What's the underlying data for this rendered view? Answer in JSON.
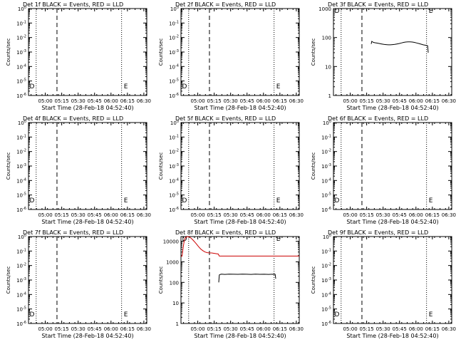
{
  "chart_data": [
    {
      "type": "line",
      "title": "Det 1f BLACK = Events, RED = LLD",
      "xlabel": "Start Time (28-Feb-18 04:52:40)",
      "ylabel": "Counts/sec",
      "x_tick_labels": [
        "05:00",
        "05:15",
        "05:30",
        "05:45",
        "06:00",
        "06:15",
        "06:30"
      ],
      "y_tick_labels": [
        "10^0",
        "10^-1",
        "10^-2",
        "10^-3",
        "10^-4",
        "10^-5",
        "10^-6"
      ],
      "y_tick_values": [
        1,
        0.1,
        0.01,
        0.001,
        0.0001,
        1e-05,
        1e-06
      ],
      "ylim": [
        1,
        1e-06
      ],
      "y_scale": "log",
      "x_minutes_range": [
        -8,
        100
      ],
      "markers": [
        {
          "label": "D",
          "x_minutes": -7
        },
        {
          "label": "E",
          "x_minutes": 79
        }
      ],
      "series": []
    },
    {
      "type": "line",
      "title": "Det 2f BLACK = Events, RED = LLD",
      "xlabel": "Start Time (28-Feb-18 04:52:40)",
      "ylabel": "Counts/sec",
      "x_tick_labels": [
        "05:00",
        "05:15",
        "05:30",
        "05:45",
        "06:00",
        "06:15",
        "06:30"
      ],
      "y_tick_labels": [
        "10^0",
        "10^-1",
        "10^-2",
        "10^-3",
        "10^-4",
        "10^-5",
        "10^-6"
      ],
      "y_tick_values": [
        1,
        0.1,
        0.01,
        0.001,
        0.0001,
        1e-05,
        1e-06
      ],
      "ylim": [
        1,
        1e-06
      ],
      "y_scale": "log",
      "x_minutes_range": [
        -8,
        100
      ],
      "markers": [
        {
          "label": "D",
          "x_minutes": -7
        },
        {
          "label": "E",
          "x_minutes": 79
        }
      ],
      "series": []
    },
    {
      "type": "line",
      "title": "Det 3f BLACK = Events, RED = LLD",
      "xlabel": "Start Time (28-Feb-18 04:52:40)",
      "ylabel": "Counts/sec",
      "x_tick_labels": [
        "05:00",
        "05:15",
        "05:30",
        "05:45",
        "06:00",
        "06:15",
        "06:30"
      ],
      "y_tick_labels": [
        "1000",
        "100",
        "10",
        "1"
      ],
      "y_tick_values": [
        1000,
        100,
        10,
        1
      ],
      "ylim": [
        1,
        1000
      ],
      "y_scale": "log",
      "x_minutes_range": [
        -8,
        100
      ],
      "markers": [
        {
          "label": "D",
          "x_minutes": -7
        },
        {
          "label": "E",
          "x_minutes": 79
        }
      ],
      "series": [
        {
          "color": "#000000",
          "x_minutes": [
            26.5,
            27,
            27.5,
            28,
            28.5,
            30,
            32,
            34,
            36,
            38,
            40,
            42,
            44,
            46,
            48,
            50,
            52,
            54,
            56,
            58,
            60,
            62,
            64,
            66,
            68,
            70,
            72,
            74,
            76,
            78,
            78.5
          ],
          "values": [
            60,
            74,
            72,
            70,
            68,
            66,
            64,
            62,
            60,
            58,
            57,
            56,
            56,
            57,
            58,
            60,
            62,
            65,
            68,
            70,
            71,
            71,
            70,
            68,
            65,
            62,
            59,
            56,
            54,
            52,
            30
          ]
        }
      ]
    },
    {
      "type": "line",
      "title": "Det 4f BLACK = Events, RED = LLD",
      "xlabel": "Start Time (28-Feb-18 04:52:40)",
      "ylabel": "Counts/sec",
      "x_tick_labels": [
        "05:00",
        "05:15",
        "05:30",
        "05:45",
        "06:00",
        "06:15",
        "06:30"
      ],
      "y_tick_labels": [
        "10^0",
        "10^-1",
        "10^-2",
        "10^-3",
        "10^-4",
        "10^-5",
        "10^-6"
      ],
      "y_tick_values": [
        1,
        0.1,
        0.01,
        0.001,
        0.0001,
        1e-05,
        1e-06
      ],
      "ylim": [
        1,
        1e-06
      ],
      "y_scale": "log",
      "x_minutes_range": [
        -8,
        100
      ],
      "markers": [
        {
          "label": "D",
          "x_minutes": -7
        },
        {
          "label": "E",
          "x_minutes": 79
        }
      ],
      "series": []
    },
    {
      "type": "line",
      "title": "Det 5f BLACK = Events, RED = LLD",
      "xlabel": "Start Time (28-Feb-18 04:52:40)",
      "ylabel": "Counts/sec",
      "x_tick_labels": [
        "05:00",
        "05:15",
        "05:30",
        "05:45",
        "06:00",
        "06:15",
        "06:30"
      ],
      "y_tick_labels": [
        "10^0",
        "10^-1",
        "10^-2",
        "10^-3",
        "10^-4",
        "10^-5",
        "10^-6"
      ],
      "y_tick_values": [
        1,
        0.1,
        0.01,
        0.001,
        0.0001,
        1e-05,
        1e-06
      ],
      "ylim": [
        1,
        1e-06
      ],
      "y_scale": "log",
      "x_minutes_range": [
        -8,
        100
      ],
      "markers": [
        {
          "label": "D",
          "x_minutes": -7
        },
        {
          "label": "E",
          "x_minutes": 79
        }
      ],
      "series": []
    },
    {
      "type": "line",
      "title": "Det 6f BLACK = Events, RED = LLD",
      "xlabel": "Start Time (28-Feb-18 04:52:40)",
      "ylabel": "Counts/sec",
      "x_tick_labels": [
        "05:00",
        "05:15",
        "05:30",
        "05:45",
        "06:00",
        "06:15",
        "06:30"
      ],
      "y_tick_labels": [
        "10^0",
        "10^-1",
        "10^-2",
        "10^-3",
        "10^-4",
        "10^-5",
        "10^-6"
      ],
      "y_tick_values": [
        1,
        0.1,
        0.01,
        0.001,
        0.0001,
        1e-05,
        1e-06
      ],
      "ylim": [
        1,
        1e-06
      ],
      "y_scale": "log",
      "x_minutes_range": [
        -8,
        100
      ],
      "markers": [
        {
          "label": "D",
          "x_minutes": -7
        },
        {
          "label": "E",
          "x_minutes": 79
        }
      ],
      "series": []
    },
    {
      "type": "line",
      "title": "Det 7f BLACK = Events, RED = LLD",
      "xlabel": "Start Time (28-Feb-18 04:52:40)",
      "ylabel": "Counts/sec",
      "x_tick_labels": [
        "05:00",
        "05:15",
        "05:30",
        "05:45",
        "06:00",
        "06:15",
        "06:30"
      ],
      "y_tick_labels": [
        "10^0",
        "10^-1",
        "10^-2",
        "10^-3",
        "10^-4",
        "10^-5",
        "10^-6"
      ],
      "y_tick_values": [
        1,
        0.1,
        0.01,
        0.001,
        0.0001,
        1e-05,
        1e-06
      ],
      "ylim": [
        1,
        1e-06
      ],
      "y_scale": "log",
      "x_minutes_range": [
        -8,
        100
      ],
      "markers": [
        {
          "label": "D",
          "x_minutes": -7
        },
        {
          "label": "E",
          "x_minutes": 79
        }
      ],
      "series": []
    },
    {
      "type": "line",
      "title": "Det 8f BLACK = Events, RED = LLD",
      "xlabel": "Start Time (28-Feb-18 04:52:40)",
      "ylabel": "Counts/sec",
      "x_tick_labels": [
        "05:00",
        "05:15",
        "05:30",
        "05:45",
        "06:00",
        "06:15",
        "06:30"
      ],
      "y_tick_labels": [
        "10000",
        "1000",
        "100",
        "10",
        "1"
      ],
      "y_tick_values": [
        10000,
        1000,
        100,
        10,
        1
      ],
      "ylim": [
        1,
        17000
      ],
      "y_scale": "log",
      "x_minutes_range": [
        -8,
        100
      ],
      "markers": [
        {
          "label": "D",
          "x_minutes": -7
        },
        {
          "label": "E",
          "x_minutes": 79
        }
      ],
      "series": [
        {
          "color": "#000000",
          "x_minutes": [
            26.5,
            27,
            28,
            29,
            30,
            32,
            36,
            40,
            44,
            48,
            52,
            56,
            60,
            64,
            68,
            72,
            76,
            78,
            78.5
          ],
          "values": [
            100,
            230,
            245,
            250,
            248,
            245,
            250,
            248,
            246,
            250,
            248,
            245,
            250,
            247,
            249,
            245,
            248,
            246,
            150
          ]
        },
        {
          "color": "#cc0000",
          "x_minutes": [
            -8,
            -7,
            -6,
            -5,
            -4,
            -2,
            0,
            2,
            4,
            6,
            8,
            10,
            12,
            14,
            16,
            18,
            20,
            22,
            24,
            26,
            27,
            30,
            40,
            50,
            60,
            70,
            80,
            90,
            100
          ],
          "values": [
            1800,
            1900,
            5000,
            11000,
            15000,
            17000,
            16000,
            13000,
            10000,
            7500,
            5500,
            4200,
            3500,
            3000,
            2800,
            2700,
            2700,
            2600,
            2500,
            2400,
            1900,
            1900,
            1900,
            1900,
            1900,
            1900,
            1900,
            1900,
            1900
          ]
        }
      ]
    },
    {
      "type": "line",
      "title": "Det 9f BLACK = Events, RED = LLD",
      "xlabel": "Start Time (28-Feb-18 04:52:40)",
      "ylabel": "Counts/sec",
      "x_tick_labels": [
        "05:00",
        "05:15",
        "05:30",
        "05:45",
        "06:00",
        "06:15",
        "06:30"
      ],
      "y_tick_labels": [
        "10^0",
        "10^-1",
        "10^-2",
        "10^-3",
        "10^-4",
        "10^-5",
        "10^-6"
      ],
      "y_tick_values": [
        1,
        0.1,
        0.01,
        0.001,
        0.0001,
        1e-05,
        1e-06
      ],
      "ylim": [
        1,
        1e-06
      ],
      "y_scale": "log",
      "x_minutes_range": [
        -8,
        100
      ],
      "markers": [
        {
          "label": "D",
          "x_minutes": -7
        },
        {
          "label": "E",
          "x_minutes": 79
        }
      ],
      "series": []
    }
  ],
  "shared": {
    "x_tick_minutes": [
      7.33,
      22.33,
      37.33,
      52.33,
      67.33,
      82.33,
      97.33
    ],
    "dotted_lines_minutes": [
      -1,
      77
    ],
    "dashed_line_minutes": 18
  }
}
